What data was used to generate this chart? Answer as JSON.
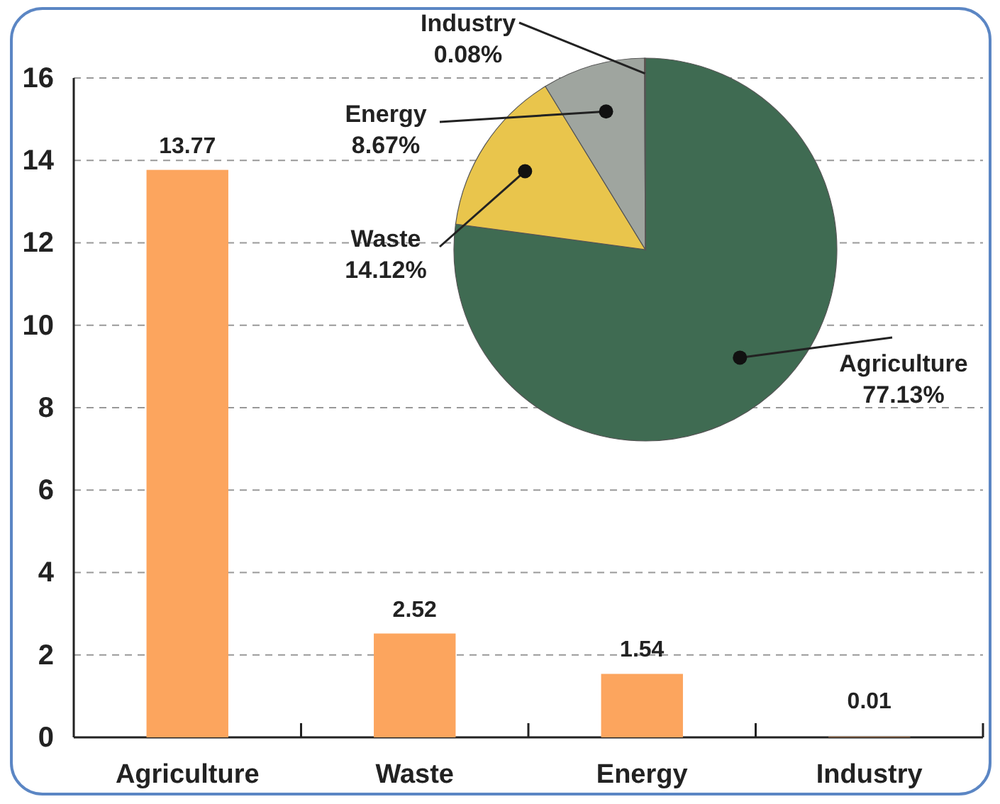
{
  "chart_data": [
    {
      "type": "bar",
      "categories": [
        "Agriculture",
        "Waste",
        "Energy",
        "Industry"
      ],
      "values": [
        13.77,
        2.52,
        1.54,
        0.01
      ],
      "color": "#fca55e",
      "ylim": [
        0,
        16
      ],
      "yticks": [
        0,
        2,
        4,
        6,
        8,
        10,
        12,
        14,
        16
      ],
      "grid": "y",
      "data_labels": true,
      "legend": false
    },
    {
      "type": "pie",
      "categories": [
        "Agriculture",
        "Waste",
        "Energy",
        "Industry"
      ],
      "values": [
        77.13,
        14.12,
        8.67,
        0.08
      ],
      "colors": [
        "#3f6b52",
        "#e9c54c",
        "#9fa59f",
        "#c8602a"
      ],
      "value_labels": [
        "77.13%",
        "14.12%",
        "8.67%",
        "0.08%"
      ],
      "legend": false
    }
  ]
}
